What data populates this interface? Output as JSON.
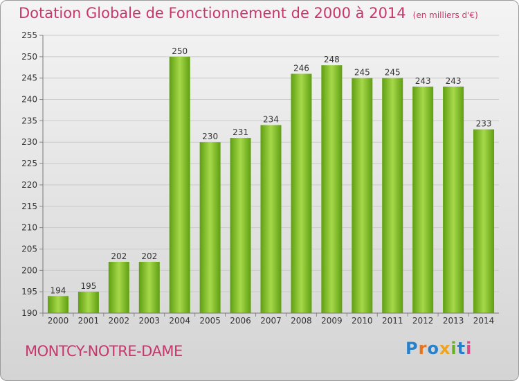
{
  "header": {
    "title": "Dotation Globale de Fonctionnement de 2000 à 2014",
    "unit": "(en milliers d'€)"
  },
  "footer": {
    "commune": "MONTCY-NOTRE-DAME",
    "logo": "Proxiti"
  },
  "colors": {
    "title": "#c8366c",
    "bar_light": "#a6d94a",
    "bar_dark": "#5f9e12"
  },
  "chart_data": {
    "type": "bar",
    "title": "Dotation Globale de Fonctionnement de 2000 à 2014",
    "categories": [
      "2000",
      "2001",
      "2002",
      "2003",
      "2004",
      "2005",
      "2006",
      "2007",
      "2008",
      "2009",
      "2010",
      "2011",
      "2012",
      "2013",
      "2014"
    ],
    "values": [
      194,
      195,
      202,
      202,
      250,
      230,
      231,
      234,
      246,
      248,
      245,
      245,
      243,
      243,
      233
    ],
    "ylim": [
      190,
      255
    ],
    "yticks": [
      190,
      195,
      200,
      205,
      210,
      215,
      220,
      225,
      230,
      235,
      240,
      245,
      250,
      255
    ],
    "grid": true,
    "data_labels": true
  }
}
